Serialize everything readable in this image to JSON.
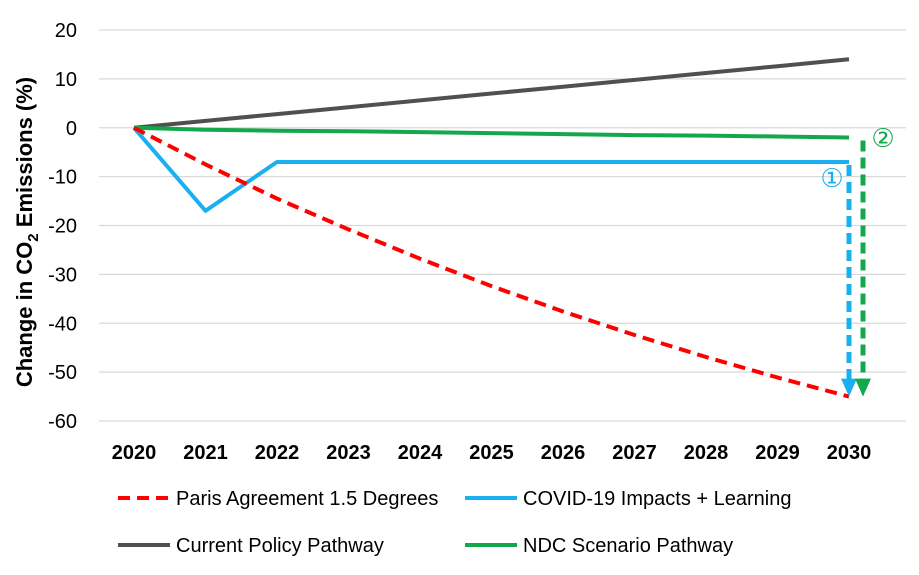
{
  "chart_data": {
    "type": "line",
    "x": [
      2020,
      2021,
      2022,
      2023,
      2024,
      2025,
      2026,
      2027,
      2028,
      2029,
      2030
    ],
    "xtick_labels": [
      "2020",
      "2021",
      "2022",
      "2023",
      "2024",
      "2025",
      "2026",
      "2027",
      "2028",
      "2029",
      "2030"
    ],
    "ylim": [
      -60,
      20
    ],
    "yticks": [
      20,
      10,
      0,
      -10,
      -20,
      -30,
      -40,
      -50,
      -60
    ],
    "ylabel_parts": [
      "Change in CO",
      "2",
      " Emissions (%)"
    ],
    "grid": "horizontal",
    "legend_placement": "bottom",
    "series": [
      {
        "name": "Paris Agreement 1.5 Degrees",
        "color": "#ff0000",
        "style": "dashed",
        "values": [
          0,
          -7.5,
          -14.5,
          -20.8,
          -26.8,
          -32.4,
          -37.6,
          -42.4,
          -46.9,
          -51.1,
          -55
        ]
      },
      {
        "name": "COVID-19 Impacts + Learning",
        "color": "#1ab0f0",
        "style": "solid",
        "values": [
          0,
          -17,
          -7,
          -7,
          -7,
          -7,
          -7,
          -7,
          -7,
          -7,
          -7
        ]
      },
      {
        "name": "Current Policy Pathway",
        "color": "#505050",
        "style": "solid",
        "values": [
          0,
          1.4,
          2.8,
          4.2,
          5.6,
          7.0,
          8.4,
          9.8,
          11.2,
          12.6,
          14
        ]
      },
      {
        "name": "NDC Scenario Pathway",
        "color": "#14a84c",
        "style": "solid",
        "values": [
          0,
          -0.4,
          -0.6,
          -0.7,
          -0.9,
          -1.1,
          -1.3,
          -1.5,
          -1.6,
          -1.8,
          -2
        ]
      }
    ],
    "annotations": [
      {
        "label": "①",
        "color": "#1ab0f0",
        "x": 2030,
        "from": -7,
        "to": -55,
        "style": "dashed-arrow"
      },
      {
        "label": "②",
        "color": "#14a84c",
        "x": 2030,
        "from": -2,
        "to": -55,
        "style": "dashed-arrow"
      }
    ]
  }
}
